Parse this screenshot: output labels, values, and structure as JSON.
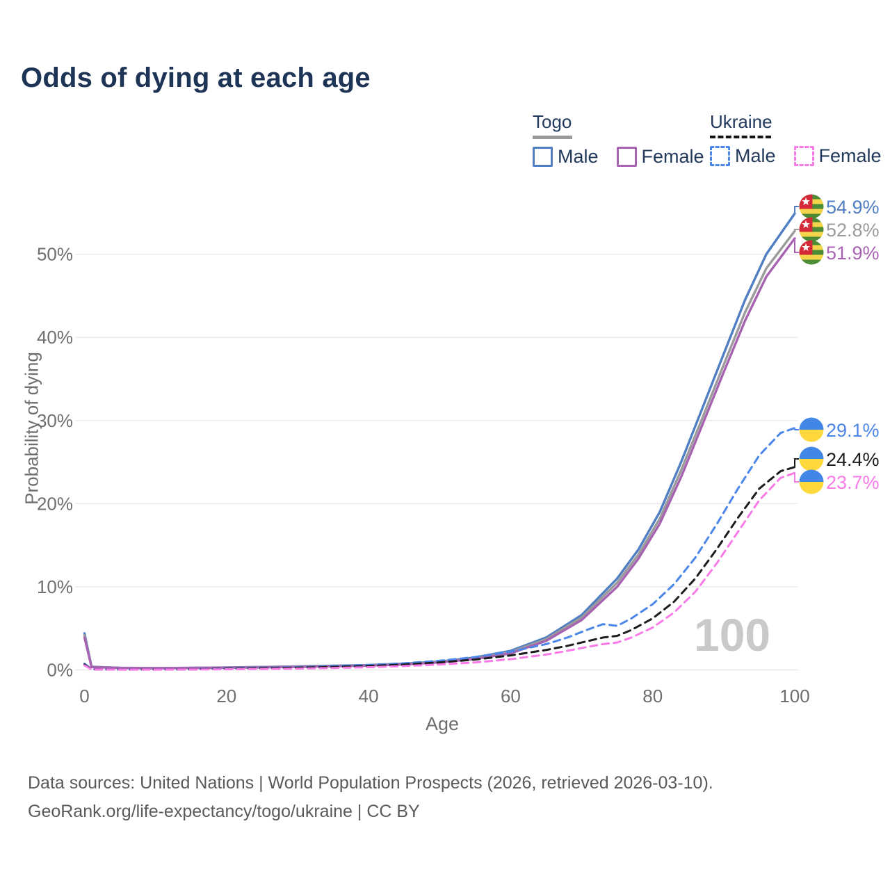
{
  "title": "Odds of dying at each age",
  "watermark": "100",
  "legend": {
    "groups": [
      {
        "country": "Togo",
        "style": "solid",
        "underline_color": "#999999",
        "items": [
          {
            "label": "Male",
            "color": "#4f7ec2"
          },
          {
            "label": "Female",
            "color": "#a763b2"
          }
        ]
      },
      {
        "country": "Ukraine",
        "style": "dashed",
        "underline_color": "#141414",
        "items": [
          {
            "label": "Male",
            "color": "#4c86e8"
          },
          {
            "label": "Female",
            "color": "#f97be8"
          }
        ]
      }
    ]
  },
  "footer": {
    "line1": "Data sources: United Nations | World Population Prospects (2026, retrieved 2026-03-10).",
    "line2": "GeoRank.org/life-expectancy/togo/ukraine | CC BY"
  },
  "chart_data": {
    "type": "line",
    "title": "Odds of dying at each age",
    "xlabel": "Age",
    "ylabel": "Probability of dying",
    "xlim": [
      0,
      100
    ],
    "ylim_pct": [
      0,
      57
    ],
    "xticks": [
      0,
      20,
      40,
      60,
      80,
      100
    ],
    "yticks_pct": [
      0,
      10,
      20,
      30,
      40,
      50
    ],
    "grid": "horizontal",
    "legend_position": "top-right",
    "series": [
      {
        "id": "togo-male",
        "country": "Togo",
        "sex": "Male",
        "color": "#4f7ec2",
        "dash": false,
        "flag": "togo",
        "end_label": "54.9%",
        "end_value_pct": 54.9,
        "points": [
          [
            0,
            4.4
          ],
          [
            1,
            0.38
          ],
          [
            5,
            0.25
          ],
          [
            10,
            0.22
          ],
          [
            15,
            0.25
          ],
          [
            20,
            0.3
          ],
          [
            25,
            0.36
          ],
          [
            30,
            0.42
          ],
          [
            35,
            0.5
          ],
          [
            40,
            0.58
          ],
          [
            45,
            0.75
          ],
          [
            50,
            1.0
          ],
          [
            55,
            1.5
          ],
          [
            60,
            2.3
          ],
          [
            65,
            3.9
          ],
          [
            70,
            6.6
          ],
          [
            75,
            11.0
          ],
          [
            78,
            14.5
          ],
          [
            81,
            19.0
          ],
          [
            84,
            25.0
          ],
          [
            87,
            31.5
          ],
          [
            90,
            38.0
          ],
          [
            93,
            44.5
          ],
          [
            96,
            50.0
          ],
          [
            100,
            54.9
          ]
        ]
      },
      {
        "id": "togo-both",
        "country": "Togo",
        "sex": "Both",
        "color": "#9b9b9b",
        "dash": false,
        "flag": "togo",
        "end_label": "52.8%",
        "end_value_pct": 52.8,
        "points": [
          [
            0,
            4.15
          ],
          [
            1,
            0.36
          ],
          [
            5,
            0.24
          ],
          [
            10,
            0.21
          ],
          [
            15,
            0.24
          ],
          [
            20,
            0.28
          ],
          [
            25,
            0.34
          ],
          [
            30,
            0.4
          ],
          [
            35,
            0.47
          ],
          [
            40,
            0.55
          ],
          [
            45,
            0.7
          ],
          [
            50,
            0.95
          ],
          [
            55,
            1.4
          ],
          [
            60,
            2.15
          ],
          [
            65,
            3.7
          ],
          [
            70,
            6.3
          ],
          [
            75,
            10.5
          ],
          [
            78,
            13.9
          ],
          [
            81,
            18.2
          ],
          [
            84,
            24.0
          ],
          [
            87,
            30.3
          ],
          [
            90,
            36.7
          ],
          [
            93,
            43.0
          ],
          [
            96,
            48.3
          ],
          [
            100,
            52.8
          ]
        ]
      },
      {
        "id": "togo-female",
        "country": "Togo",
        "sex": "Female",
        "color": "#a763b2",
        "dash": false,
        "flag": "togo",
        "end_label": "51.9%",
        "end_value_pct": 51.9,
        "points": [
          [
            0,
            3.9
          ],
          [
            1,
            0.34
          ],
          [
            5,
            0.23
          ],
          [
            10,
            0.2
          ],
          [
            15,
            0.23
          ],
          [
            20,
            0.26
          ],
          [
            25,
            0.31
          ],
          [
            30,
            0.37
          ],
          [
            35,
            0.44
          ],
          [
            40,
            0.52
          ],
          [
            45,
            0.66
          ],
          [
            50,
            0.9
          ],
          [
            55,
            1.32
          ],
          [
            60,
            2.0
          ],
          [
            65,
            3.5
          ],
          [
            70,
            6.0
          ],
          [
            75,
            10.0
          ],
          [
            78,
            13.4
          ],
          [
            81,
            17.6
          ],
          [
            84,
            23.2
          ],
          [
            87,
            29.5
          ],
          [
            90,
            35.8
          ],
          [
            93,
            42.0
          ],
          [
            96,
            47.3
          ],
          [
            100,
            51.9
          ]
        ]
      },
      {
        "id": "ukraine-male",
        "country": "Ukraine",
        "sex": "Male",
        "color": "#4c86e8",
        "dash": true,
        "flag": "ukraine",
        "end_label": "29.1%",
        "end_value_pct": 29.1,
        "points": [
          [
            0,
            0.75
          ],
          [
            1,
            0.08
          ],
          [
            5,
            0.05
          ],
          [
            10,
            0.05
          ],
          [
            15,
            0.08
          ],
          [
            20,
            0.18
          ],
          [
            25,
            0.25
          ],
          [
            30,
            0.33
          ],
          [
            35,
            0.45
          ],
          [
            40,
            0.6
          ],
          [
            45,
            0.8
          ],
          [
            50,
            1.1
          ],
          [
            55,
            1.55
          ],
          [
            60,
            2.2
          ],
          [
            65,
            3.1
          ],
          [
            68,
            3.9
          ],
          [
            71,
            4.9
          ],
          [
            73,
            5.5
          ],
          [
            75,
            5.3
          ],
          [
            77,
            6.2
          ],
          [
            80,
            7.9
          ],
          [
            83,
            10.3
          ],
          [
            86,
            13.5
          ],
          [
            89,
            17.5
          ],
          [
            92,
            21.8
          ],
          [
            95,
            25.8
          ],
          [
            98,
            28.5
          ],
          [
            100,
            29.1
          ]
        ]
      },
      {
        "id": "ukraine-both",
        "country": "Ukraine",
        "sex": "Both",
        "color": "#1c1c1c",
        "dash": true,
        "flag": "ukraine",
        "end_label": "24.4%",
        "end_value_pct": 24.4,
        "points": [
          [
            0,
            0.65
          ],
          [
            1,
            0.07
          ],
          [
            5,
            0.04
          ],
          [
            10,
            0.04
          ],
          [
            15,
            0.07
          ],
          [
            20,
            0.14
          ],
          [
            25,
            0.2
          ],
          [
            30,
            0.27
          ],
          [
            35,
            0.36
          ],
          [
            40,
            0.48
          ],
          [
            45,
            0.65
          ],
          [
            50,
            0.9
          ],
          [
            55,
            1.25
          ],
          [
            60,
            1.75
          ],
          [
            65,
            2.4
          ],
          [
            68,
            2.9
          ],
          [
            71,
            3.5
          ],
          [
            73,
            3.9
          ],
          [
            75,
            4.1
          ],
          [
            77,
            4.8
          ],
          [
            80,
            6.2
          ],
          [
            83,
            8.2
          ],
          [
            86,
            11.0
          ],
          [
            89,
            14.5
          ],
          [
            92,
            18.3
          ],
          [
            95,
            21.8
          ],
          [
            98,
            23.9
          ],
          [
            100,
            24.4
          ]
        ]
      },
      {
        "id": "ukraine-female",
        "country": "Ukraine",
        "sex": "Female",
        "color": "#f97be8",
        "dash": true,
        "flag": "ukraine",
        "end_label": "23.7%",
        "end_value_pct": 23.7,
        "points": [
          [
            0,
            0.55
          ],
          [
            1,
            0.06
          ],
          [
            5,
            0.03
          ],
          [
            10,
            0.03
          ],
          [
            15,
            0.05
          ],
          [
            20,
            0.08
          ],
          [
            25,
            0.11
          ],
          [
            30,
            0.16
          ],
          [
            35,
            0.23
          ],
          [
            40,
            0.33
          ],
          [
            45,
            0.47
          ],
          [
            50,
            0.65
          ],
          [
            55,
            0.9
          ],
          [
            60,
            1.3
          ],
          [
            65,
            1.85
          ],
          [
            68,
            2.3
          ],
          [
            71,
            2.8
          ],
          [
            73,
            3.1
          ],
          [
            75,
            3.3
          ],
          [
            77,
            3.9
          ],
          [
            80,
            5.1
          ],
          [
            83,
            6.9
          ],
          [
            86,
            9.4
          ],
          [
            89,
            12.8
          ],
          [
            92,
            16.6
          ],
          [
            95,
            20.4
          ],
          [
            98,
            23.1
          ],
          [
            100,
            23.7
          ]
        ]
      }
    ]
  }
}
